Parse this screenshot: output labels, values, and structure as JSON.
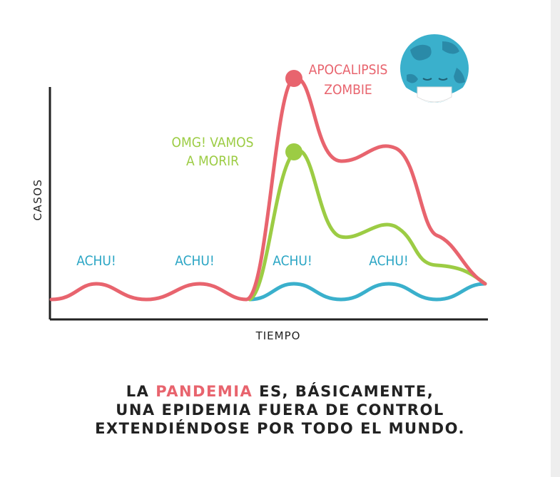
{
  "axes": {
    "y_label": "CASOS",
    "x_label": "TIEMPO"
  },
  "annotations": {
    "sneezes": [
      "ACHU!",
      "ACHU!",
      "ACHU!",
      "ACHU!"
    ],
    "zombie": [
      "APOCALIPSIS",
      "ZOMBIE"
    ],
    "panic": [
      "OMG! VAMOS",
      "A MORIR"
    ]
  },
  "caption": {
    "line1_start": "LA ",
    "line1_highlight": "PANDEMIA",
    "line1_end": " ES, BÁSICAMENTE,",
    "line2": "UNA EPIDEMIA FUERA DE CONTROL",
    "line3": "EXTENDIÉNDOSE POR TODO EL MUNDO."
  }
}
